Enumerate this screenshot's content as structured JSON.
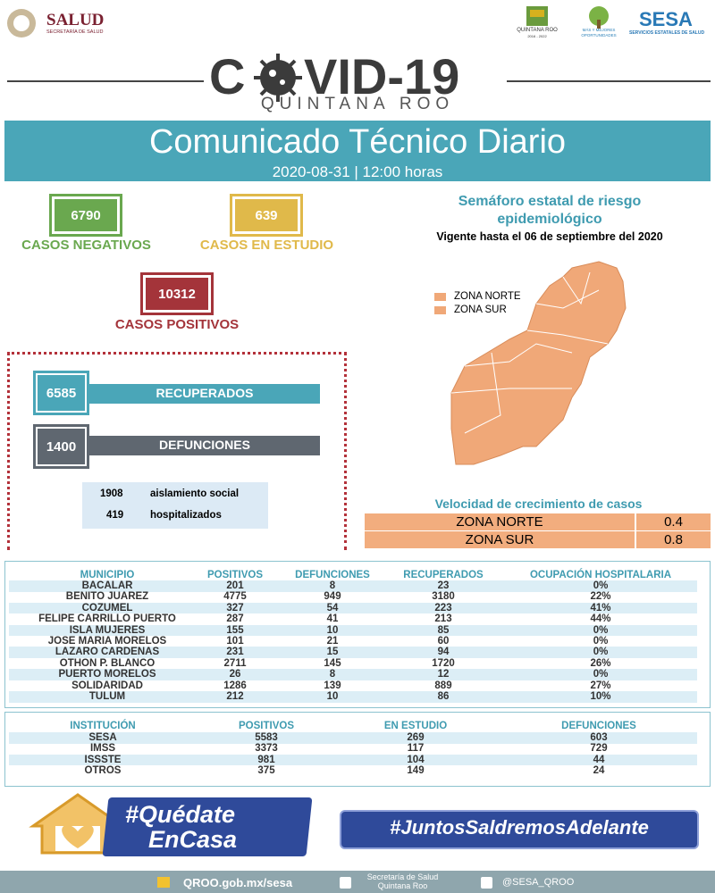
{
  "header": {
    "salud": "SALUD",
    "salud_sub": "SECRETARÍA DE SALUD",
    "qroo": "QUINTANA ROO",
    "qroo_sub": "2016 - 2022",
    "mas": "MÁS Y MEJORES OPORTUNIDADES",
    "sesa": "SESA",
    "sesa_sub": "SERVICIOS ESTATALES DE SALUD"
  },
  "logo": {
    "left": "C",
    "right": "VID-19",
    "subtitle": "QUINTANA ROO"
  },
  "banner": {
    "title": "Comunicado Técnico Diario",
    "date": "2020-08-31 | 12:00 horas"
  },
  "stats": {
    "negativos": {
      "value": 6790,
      "label": "CASOS NEGATIVOS"
    },
    "estudio": {
      "value": 639,
      "label": "CASOS EN ESTUDIO"
    },
    "positivos": {
      "value": 10312,
      "label": "CASOS POSITIVOS"
    },
    "recuperados": {
      "value": 6585,
      "label": "RECUPERADOS"
    },
    "defunciones": {
      "value": 1400,
      "label": "DEFUNCIONES"
    },
    "aislamiento": {
      "value": 1908,
      "label": "aislamiento social"
    },
    "hospitalizados": {
      "value": 419,
      "label": "hospitalizados"
    }
  },
  "semaforo": {
    "title": "Semáforo estatal de riesgo epidemiológico",
    "vigente": "Vigente hasta el 06 de septiembre del 2020",
    "legend": [
      "ZONA NORTE",
      "ZONA SUR"
    ]
  },
  "velocidad": {
    "title": "Velocidad de crecimiento de casos",
    "rows": [
      [
        "ZONA NORTE",
        0.4
      ],
      [
        "ZONA SUR",
        0.8
      ]
    ]
  },
  "municipios": {
    "header": [
      "MUNICIPIO",
      "POSITIVOS",
      "DEFUNCIONES",
      "RECUPERADOS",
      "OCUPACIÓN HOSPITALARIA"
    ],
    "rows": [
      [
        "BACALAR",
        201,
        8,
        23,
        "0%"
      ],
      [
        "BENITO JUAREZ",
        4775,
        949,
        3180,
        "22%"
      ],
      [
        "COZUMEL",
        327,
        54,
        223,
        "41%"
      ],
      [
        "FELIPE CARRILLO PUERTO",
        287,
        41,
        213,
        "44%"
      ],
      [
        "ISLA MUJERES",
        155,
        10,
        85,
        "0%"
      ],
      [
        "JOSE MARIA MORELOS",
        101,
        21,
        60,
        "0%"
      ],
      [
        "LAZARO CARDENAS",
        231,
        15,
        94,
        "0%"
      ],
      [
        "OTHON P. BLANCO",
        2711,
        145,
        1720,
        "26%"
      ],
      [
        "PUERTO MORELOS",
        26,
        8,
        12,
        "0%"
      ],
      [
        "SOLIDARIDAD",
        1286,
        139,
        889,
        "27%"
      ],
      [
        "TULUM",
        212,
        10,
        86,
        "10%"
      ]
    ]
  },
  "instituciones": {
    "header": [
      "INSTITUCIÓN",
      "POSITIVOS",
      "EN ESTUDIO",
      "DEFUNCIONES"
    ],
    "rows": [
      [
        "SESA",
        5583,
        269,
        603
      ],
      [
        "IMSS",
        3373,
        117,
        729
      ],
      [
        "ISSSTE",
        981,
        104,
        44
      ],
      [
        "OTROS",
        375,
        149,
        24
      ]
    ]
  },
  "campaign": {
    "quedate_1": "#Quédate",
    "quedate_2": "EnCasa",
    "juntos": "#JuntosSaldremosAdelante"
  },
  "footer": {
    "web": "QROO.gob.mx/sesa",
    "fb": "Secretaría de Salud Quintana Roo",
    "tw": "@SESA_QROO"
  }
}
